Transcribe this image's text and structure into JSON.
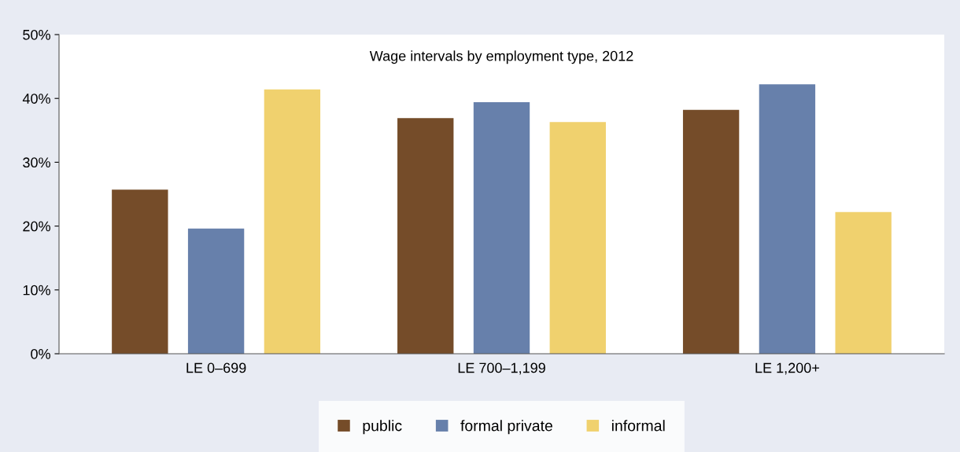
{
  "chart_data": {
    "type": "bar",
    "title": "Wage intervals by employment type, 2012",
    "categories": [
      "LE 0–699",
      "LE 700–1,199",
      "LE 1,200+"
    ],
    "series": [
      {
        "name": "public",
        "color": "#754c29",
        "values": [
          25.7,
          36.9,
          38.2
        ]
      },
      {
        "name": "formal private",
        "color": "#6780ab",
        "values": [
          19.6,
          39.4,
          42.2
        ]
      },
      {
        "name": "informal",
        "color": "#f0d16e",
        "values": [
          41.4,
          36.3,
          22.2
        ]
      }
    ],
    "ylim": [
      0,
      50
    ],
    "yticks": [
      {
        "value": 0,
        "label": "0%"
      },
      {
        "value": 10,
        "label": "10%"
      },
      {
        "value": 20,
        "label": "20%"
      },
      {
        "value": 30,
        "label": "30%"
      },
      {
        "value": 40,
        "label": "40%"
      },
      {
        "value": 50,
        "label": "50%"
      }
    ],
    "grid": false,
    "legend": "bottom"
  }
}
